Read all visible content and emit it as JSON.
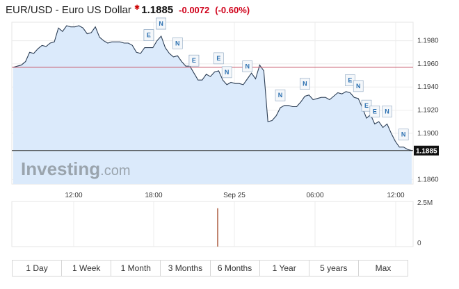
{
  "header": {
    "symbol_title": "EUR/USD - Euro US Dollar",
    "price": "1.1885",
    "change": "-0.0072",
    "change_pct": "(-0.60%)"
  },
  "watermark": {
    "brand": "Investing",
    "suffix": ".com"
  },
  "colors": {
    "line": "#2c3e55",
    "area": "#dbeafb",
    "prev_close": "#c8586a",
    "current": "#333333",
    "volume": "#c0846f",
    "accent_red": "#d0021b"
  },
  "chart_data": {
    "type": "area",
    "x_tick_labels": [
      "12:00",
      "18:00",
      "Sep 25",
      "06:00",
      "12:00"
    ],
    "y_ticks": [
      "1.1980",
      "1.1960",
      "1.1940",
      "1.1920",
      "1.1900",
      "1.1860"
    ],
    "ylim": [
      1.1856,
      1.1996
    ],
    "prev_close": 1.1957,
    "current_price_label": "1.1885",
    "current_price": 1.1885,
    "series": [
      {
        "values": [
          1.1957,
          1.1958,
          1.1959,
          1.1962,
          1.197,
          1.1969,
          1.1973,
          1.1976,
          1.1975,
          1.1978,
          1.1979,
          1.1991,
          1.1988,
          1.1993,
          1.1992,
          1.1992,
          1.1993,
          1.1991,
          1.1986,
          1.1987,
          1.1992,
          1.1983,
          1.198,
          1.1978,
          1.1979,
          1.1979,
          1.1979,
          1.1978,
          1.1978,
          1.1976,
          1.197,
          1.1969,
          1.1974,
          1.1974,
          1.1974,
          1.198,
          1.1984,
          1.1974,
          1.1969,
          1.1966,
          1.1967,
          1.1962,
          1.1958,
          1.1958,
          1.1952,
          1.1946,
          1.1946,
          1.1951,
          1.1949,
          1.1953,
          1.1954,
          1.1946,
          1.1942,
          1.1944,
          1.1943,
          1.1943,
          1.1942,
          1.1947,
          1.1952,
          1.1947,
          1.1959,
          1.1954,
          1.191,
          1.1911,
          1.1915,
          1.1922,
          1.1924,
          1.1924,
          1.1923,
          1.1923,
          1.1927,
          1.1932,
          1.1933,
          1.1929,
          1.193,
          1.1931,
          1.1931,
          1.1929,
          1.1932,
          1.1935,
          1.1934,
          1.1936,
          1.1935,
          1.1931,
          1.193,
          1.1922,
          1.1913,
          1.1916,
          1.1908,
          1.191,
          1.1905,
          1.1908,
          1.19,
          1.1893,
          1.1888,
          1.1888,
          1.1886,
          1.1885
        ]
      }
    ],
    "markers": [
      {
        "label": "N",
        "i": 41
      },
      {
        "label": "E",
        "i": 45
      },
      {
        "label": "N",
        "i": 49
      },
      {
        "label": "E",
        "i": 41
      },
      {
        "label": "N",
        "i": 44
      },
      {
        "label": "E",
        "i": 54
      },
      {
        "label": "E",
        "i": 55
      },
      {
        "label": "E",
        "i": 62
      },
      {
        "label": "N",
        "i": 64
      },
      {
        "label": "N",
        "i": 70
      },
      {
        "label": "N",
        "i": 80
      },
      {
        "label": "N",
        "i": 88
      },
      {
        "label": "E",
        "i": 102
      },
      {
        "label": "N",
        "i": 104
      },
      {
        "label": "E",
        "i": 106
      },
      {
        "label": "E",
        "i": 109
      },
      {
        "label": "N",
        "i": 112
      },
      {
        "label": "N",
        "i": 118
      }
    ],
    "volume": {
      "y_ticks": [
        "2.5M",
        "0"
      ],
      "spike": 0.85
    }
  },
  "ranges": [
    "1 Day",
    "1 Week",
    "1 Month",
    "3 Months",
    "6 Months",
    "1 Year",
    "5 years",
    "Max"
  ]
}
